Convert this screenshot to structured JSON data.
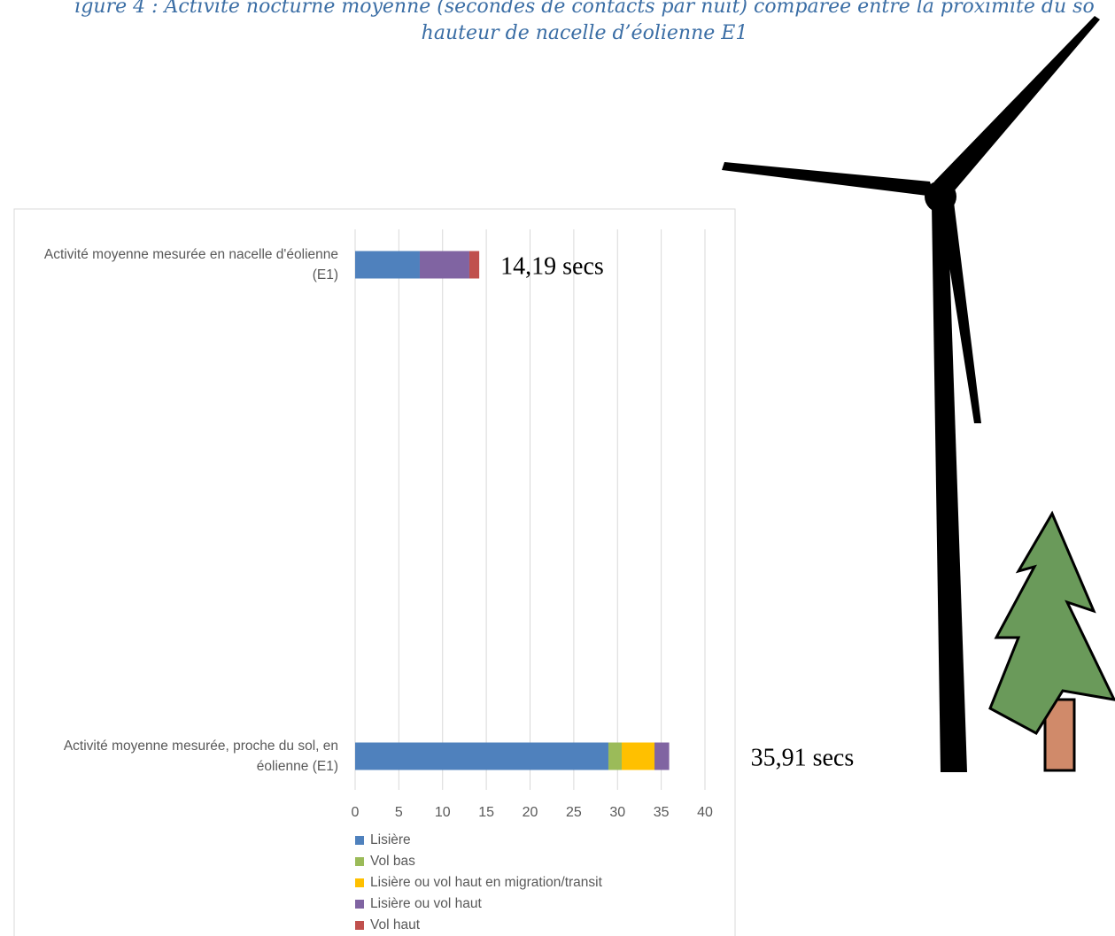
{
  "chart_data": {
    "type": "stacked-barh",
    "title_lines": [
      "igure 4 : Activité nocturne moyenne (secondes de contacts par nuit) comparée entre la proximité du so",
      "hauteur de nacelle d’éolienne E1"
    ],
    "categories": [
      "Activité moyenne mesurée en nacelle d'éolienne (E1)",
      "Activité moyenne mesurée, proche du sol, en éolienne (E1)"
    ],
    "series": [
      {
        "name": "Lisière",
        "color": "#4f81bd",
        "values": [
          7.39,
          28.96
        ]
      },
      {
        "name": "Vol bas",
        "color": "#9bbb59",
        "values": [
          0,
          1.52
        ]
      },
      {
        "name": "Lisière ou vol haut en migration/transit",
        "color": "#ffc000",
        "values": [
          0,
          3.75
        ]
      },
      {
        "name": "Lisière ou vol haut",
        "color": "#8064a2",
        "values": [
          5.67,
          1.68
        ]
      },
      {
        "name": "Vol haut",
        "color": "#c0504d",
        "values": [
          1.13,
          0
        ]
      }
    ],
    "totals": [
      14.19,
      35.91
    ],
    "total_labels": [
      "14,19 secs",
      "35,91 secs"
    ],
    "xlim": [
      0,
      40
    ],
    "xticks": [
      0,
      5,
      10,
      15,
      20,
      25,
      30,
      35,
      40
    ],
    "grid": true,
    "legend": "bottom"
  }
}
